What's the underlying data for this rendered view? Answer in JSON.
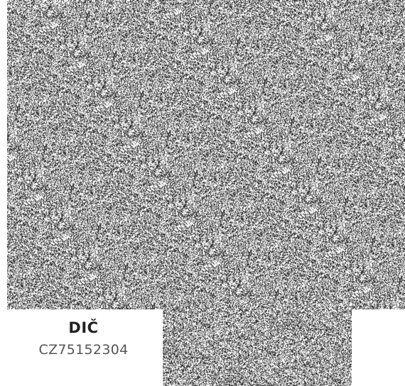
{
  "tax_id": {
    "label": "DIČ",
    "value": "CZ75152304"
  },
  "noise": {
    "foreground": "#2a2a2a",
    "background": "#ffffff",
    "density": 0.45
  }
}
